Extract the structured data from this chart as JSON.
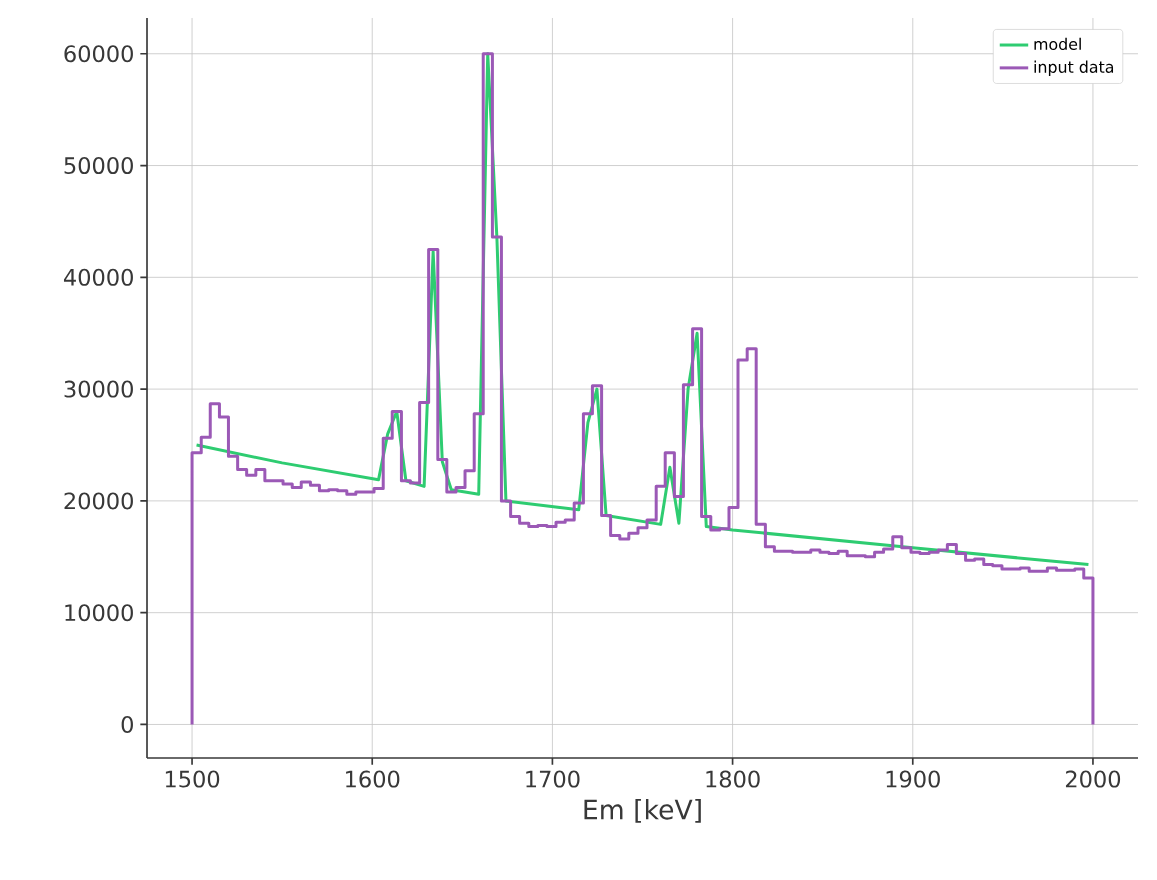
{
  "chart_data": {
    "type": "line",
    "xlabel": "Em [keV]",
    "xlim": [
      1475,
      2025
    ],
    "ylim": [
      -3000,
      63200
    ],
    "xticks": [
      1500,
      1600,
      1700,
      1800,
      1900,
      2000
    ],
    "yticks": [
      0,
      10000,
      20000,
      30000,
      40000,
      50000,
      60000
    ],
    "grid": true,
    "legend": "top right",
    "series": [
      {
        "name": "model",
        "color": "#2ecc71",
        "x": [
          1502.5,
          1550,
          1603.5,
          1608.6,
          1613.6,
          1618.7,
          1628.8,
          1633.8,
          1638.9,
          1643.9,
          1659.1,
          1664.1,
          1669.2,
          1674.2,
          1714.6,
          1719.7,
          1724.7,
          1729.8,
          1760.1,
          1765.2,
          1770.2,
          1775.3,
          1780.3,
          1785.4,
          1800,
          1900,
          1997.5
        ],
        "values": [
          25000,
          23400,
          21900,
          26000,
          28000,
          21800,
          21300,
          42300,
          23500,
          21000,
          20600,
          60000,
          43500,
          20000,
          19200,
          27000,
          30000,
          18700,
          17900,
          23000,
          18000,
          30000,
          35000,
          17700,
          17400,
          15800,
          14300
        ]
      },
      {
        "name": "input data",
        "color": "#9b59b6",
        "type": "step",
        "x": [
          1500,
          1500,
          1505.1,
          1510.1,
          1515.2,
          1520.2,
          1525.3,
          1530.3,
          1535.4,
          1540.4,
          1545.5,
          1550.5,
          1555.6,
          1560.6,
          1565.7,
          1570.7,
          1575.8,
          1580.8,
          1585.9,
          1590.9,
          1596,
          1601,
          1606.1,
          1611.1,
          1616.2,
          1621.2,
          1626.3,
          1631.3,
          1636.4,
          1641.4,
          1646.5,
          1651.5,
          1656.6,
          1661.6,
          1666.7,
          1671.7,
          1676.8,
          1681.8,
          1686.9,
          1691.9,
          1697,
          1702,
          1707.1,
          1712.1,
          1717.2,
          1722.2,
          1727.3,
          1732.3,
          1737.4,
          1742.4,
          1747.5,
          1752.5,
          1757.6,
          1762.6,
          1767.7,
          1772.7,
          1777.8,
          1782.8,
          1787.9,
          1792.9,
          1798,
          1803,
          1808.1,
          1813.1,
          1818.2,
          1823.2,
          1828.3,
          1833.3,
          1838.4,
          1843.4,
          1848.5,
          1853.5,
          1858.6,
          1863.6,
          1868.7,
          1873.7,
          1878.8,
          1883.8,
          1888.9,
          1893.9,
          1899,
          1904,
          1909.1,
          1914.1,
          1919.2,
          1924.2,
          1929.3,
          1934.3,
          1939.4,
          1944.4,
          1949.5,
          1954.5,
          1959.6,
          1964.6,
          1969.7,
          1974.7,
          1979.8,
          1984.8,
          1989.9,
          1994.9,
          2000
        ],
        "values": [
          0,
          24300,
          25700,
          28700,
          27500,
          24000,
          22800,
          22300,
          22800,
          21800,
          21800,
          21500,
          21200,
          21700,
          21400,
          20900,
          21000,
          20900,
          20600,
          20800,
          20800,
          21100,
          25600,
          28000,
          21800,
          21600,
          28800,
          42500,
          23700,
          20800,
          21200,
          22700,
          27800,
          60000,
          43600,
          20000,
          18600,
          18000,
          17700,
          17800,
          17700,
          18100,
          18300,
          19800,
          27800,
          30300,
          18700,
          16900,
          16600,
          17100,
          17600,
          18300,
          21300,
          24300,
          20400,
          30400,
          35400,
          18600,
          17400,
          17500,
          19400,
          32600,
          33600,
          17900,
          15900,
          15500,
          15500,
          15400,
          15400,
          15600,
          15400,
          15300,
          15500,
          15100,
          15100,
          15000,
          15400,
          15700,
          16800,
          15800,
          15400,
          15300,
          15400,
          15600,
          16100,
          15300,
          14700,
          14800,
          14300,
          14200,
          13900,
          13900,
          14000,
          13700,
          13700,
          14000,
          13800,
          13800,
          13900,
          13100,
          0
        ]
      }
    ]
  }
}
